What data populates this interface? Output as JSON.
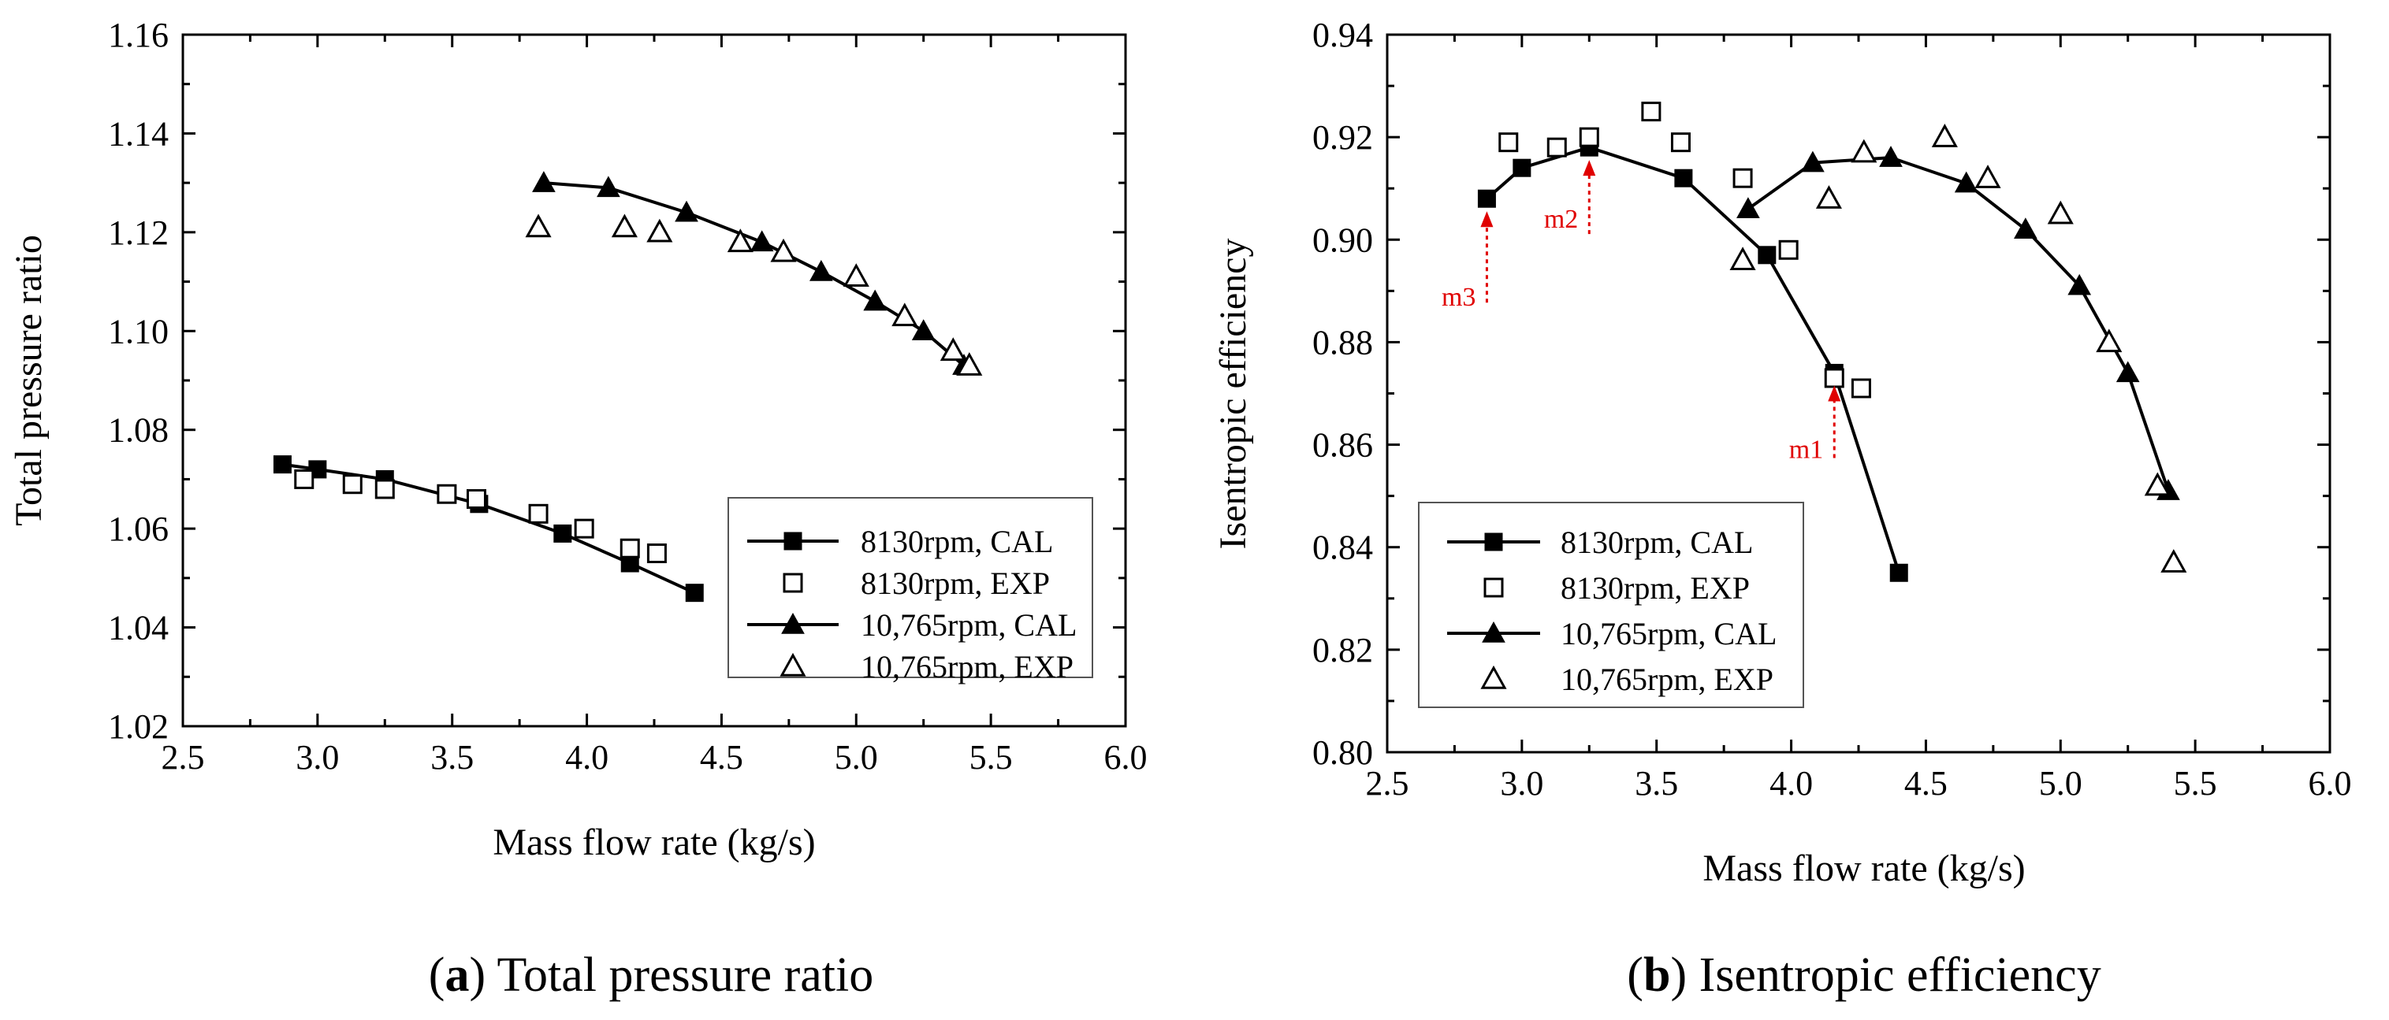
{
  "captions": [
    {
      "letter": "a",
      "text": "Total pressure ratio"
    },
    {
      "letter": "b",
      "text": "Isentropic efficiency"
    }
  ],
  "colors": {
    "axis": "#000000",
    "annotation": "#e00000"
  },
  "chart_data": [
    {
      "type": "line",
      "xlabel": "Mass flow rate (kg/s)",
      "ylabel": "Total pressure ratio",
      "xlim": [
        2.5,
        6.0
      ],
      "ylim": [
        1.02,
        1.16
      ],
      "xticks": [
        "2.5",
        "3.0",
        "3.5",
        "4.0",
        "4.5",
        "5.0",
        "5.5",
        "6.0"
      ],
      "yticks": [
        "1.02",
        "1.04",
        "1.06",
        "1.08",
        "1.10",
        "1.12",
        "1.14",
        "1.16"
      ],
      "grid": false,
      "legend_position": "bottom-right",
      "series": [
        {
          "name": "8130rpm, CAL",
          "marker": "filled-square",
          "line": true,
          "x": [
            2.87,
            3.0,
            3.25,
            3.6,
            3.91,
            4.16,
            4.4
          ],
          "y": [
            1.073,
            1.072,
            1.07,
            1.065,
            1.059,
            1.053,
            1.047
          ]
        },
        {
          "name": "8130rpm, EXP",
          "marker": "open-square",
          "line": false,
          "x": [
            2.95,
            3.13,
            3.25,
            3.48,
            3.59,
            3.82,
            3.99,
            4.16,
            4.26
          ],
          "y": [
            1.07,
            1.069,
            1.068,
            1.067,
            1.066,
            1.063,
            1.06,
            1.056,
            1.055
          ]
        },
        {
          "name": "10,765rpm, CAL",
          "marker": "filled-triangle",
          "line": true,
          "x": [
            3.84,
            4.08,
            4.37,
            4.65,
            4.87,
            5.07,
            5.25,
            5.4
          ],
          "y": [
            1.13,
            1.129,
            1.124,
            1.118,
            1.112,
            1.106,
            1.1,
            1.093
          ]
        },
        {
          "name": "10,765rpm, EXP",
          "marker": "open-triangle",
          "line": false,
          "x": [
            3.82,
            4.14,
            4.27,
            4.57,
            4.73,
            5.0,
            5.18,
            5.36,
            5.42
          ],
          "y": [
            1.121,
            1.121,
            1.12,
            1.118,
            1.116,
            1.111,
            1.103,
            1.096,
            1.093
          ]
        }
      ]
    },
    {
      "type": "line",
      "xlabel": "Mass flow rate (kg/s)",
      "ylabel": "Isentropic efficiency",
      "xlim": [
        2.5,
        6.0
      ],
      "ylim": [
        0.8,
        0.94
      ],
      "xticks": [
        "2.5",
        "3.0",
        "3.5",
        "4.0",
        "4.5",
        "5.0",
        "5.5",
        "6.0"
      ],
      "yticks": [
        "0.80",
        "0.82",
        "0.84",
        "0.86",
        "0.88",
        "0.90",
        "0.92",
        "0.94"
      ],
      "grid": false,
      "legend_position": "bottom-left",
      "series": [
        {
          "name": "8130rpm, CAL",
          "marker": "filled-square",
          "line": true,
          "x": [
            2.87,
            3.0,
            3.25,
            3.6,
            3.91,
            4.16,
            4.4
          ],
          "y": [
            0.908,
            0.914,
            0.918,
            0.912,
            0.897,
            0.874,
            0.835
          ]
        },
        {
          "name": "8130rpm, EXP",
          "marker": "open-square",
          "line": false,
          "x": [
            2.95,
            3.13,
            3.25,
            3.48,
            3.59,
            3.82,
            3.99,
            4.16,
            4.26
          ],
          "y": [
            0.919,
            0.918,
            0.92,
            0.925,
            0.919,
            0.912,
            0.898,
            0.873,
            0.871
          ]
        },
        {
          "name": "10,765rpm, CAL",
          "marker": "filled-triangle",
          "line": true,
          "x": [
            3.84,
            4.08,
            4.37,
            4.65,
            4.87,
            5.07,
            5.25,
            5.4
          ],
          "y": [
            0.906,
            0.915,
            0.916,
            0.911,
            0.902,
            0.891,
            0.874,
            0.851
          ]
        },
        {
          "name": "10,765rpm, EXP",
          "marker": "open-triangle",
          "line": false,
          "x": [
            3.82,
            4.14,
            4.27,
            4.57,
            4.73,
            5.0,
            5.18,
            5.36,
            5.42
          ],
          "y": [
            0.896,
            0.908,
            0.917,
            0.92,
            0.912,
            0.905,
            0.88,
            0.852,
            0.837
          ]
        }
      ],
      "annotations": [
        {
          "label": "m1",
          "x": 4.16,
          "y": 0.874
        },
        {
          "label": "m2",
          "x": 3.25,
          "y": 0.918
        },
        {
          "label": "m3",
          "x": 2.87,
          "y": 0.908
        }
      ]
    }
  ]
}
